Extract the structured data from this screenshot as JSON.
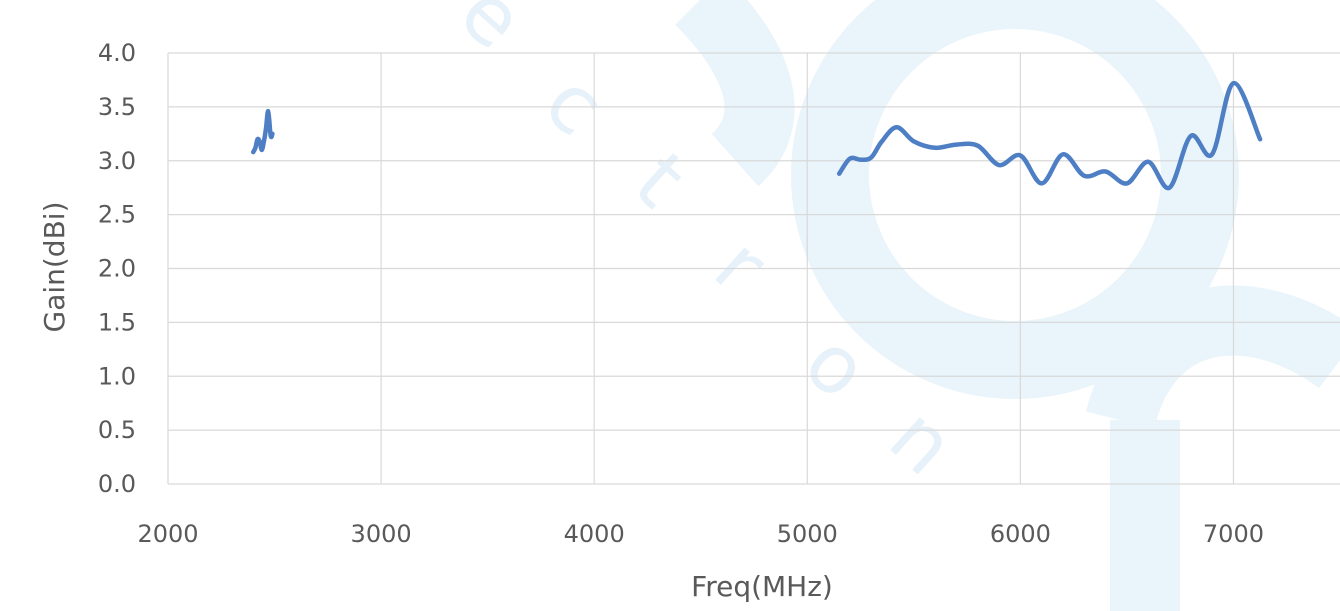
{
  "chart_data": {
    "type": "line",
    "title": "",
    "xlabel": "Freq(MHz)",
    "ylabel": "Gain(dBi)",
    "xlim": [
      2000,
      7500
    ],
    "ylim": [
      0.0,
      4.0
    ],
    "x_ticks": [
      "2000",
      "3000",
      "4000",
      "5000",
      "6000",
      "7000"
    ],
    "y_ticks": [
      "0.0",
      "0.5",
      "1.0",
      "1.5",
      "2.0",
      "2.5",
      "3.0",
      "3.5",
      "4.0"
    ],
    "grid": true,
    "legend": "none",
    "color": "#4e7fc4",
    "series": [
      {
        "segments": [
          [
            [
              2400,
              3.08
            ],
            [
              2410,
              3.12
            ],
            [
              2420,
              3.2
            ],
            [
              2430,
              3.18
            ],
            [
              2440,
              3.1
            ],
            [
              2450,
              3.18
            ],
            [
              2460,
              3.3
            ],
            [
              2470,
              3.46
            ],
            [
              2480,
              3.26
            ],
            [
              2485,
              3.22
            ],
            [
              2490,
              3.25
            ]
          ],
          [
            [
              5150,
              2.88
            ],
            [
              5200,
              3.02
            ],
            [
              5250,
              3.01
            ],
            [
              5300,
              3.03
            ],
            [
              5350,
              3.18
            ],
            [
              5420,
              3.31
            ],
            [
              5500,
              3.18
            ],
            [
              5600,
              3.12
            ],
            [
              5700,
              3.15
            ],
            [
              5800,
              3.14
            ],
            [
              5900,
              2.96
            ],
            [
              6000,
              3.05
            ],
            [
              6100,
              2.79
            ],
            [
              6200,
              3.06
            ],
            [
              6300,
              2.86
            ],
            [
              6400,
              2.9
            ],
            [
              6500,
              2.79
            ],
            [
              6600,
              2.99
            ],
            [
              6700,
              2.75
            ],
            [
              6800,
              3.23
            ],
            [
              6900,
              3.06
            ],
            [
              7000,
              3.72
            ],
            [
              7125,
              3.2
            ]
          ]
        ]
      }
    ]
  },
  "watermark": {
    "letters": [
      "e",
      "c",
      "t",
      "r",
      "o",
      "n"
    ]
  }
}
